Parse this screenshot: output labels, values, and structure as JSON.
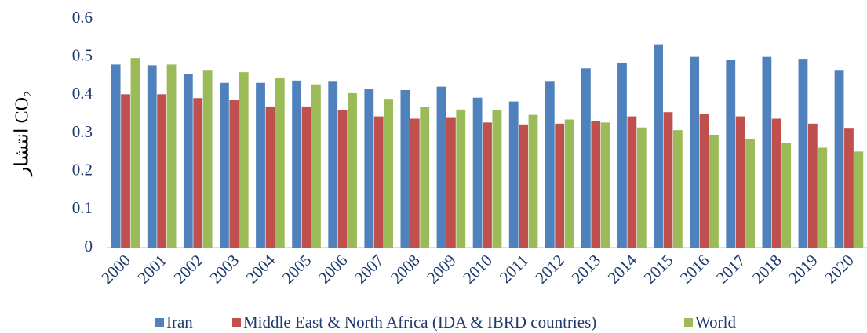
{
  "chart_data": {
    "type": "bar",
    "y_label": "انتشار CO₂",
    "categories": [
      "2000",
      "2001",
      "2002",
      "2003",
      "2004",
      "2005",
      "2006",
      "2007",
      "2008",
      "2009",
      "2010",
      "2011",
      "2012",
      "2013",
      "2014",
      "2015",
      "2016",
      "2017",
      "2018",
      "2019",
      "2020"
    ],
    "series": [
      {
        "name": "Iran",
        "color": "#4f81bd",
        "values": [
          0.48,
          0.478,
          0.455,
          0.432,
          0.432,
          0.438,
          0.435,
          0.415,
          0.413,
          0.422,
          0.393,
          0.383,
          0.435,
          0.47,
          0.485,
          0.533,
          0.5,
          0.493,
          0.5,
          0.495,
          0.466
        ]
      },
      {
        "name": "Middle East & North Africa (IDA & IBRD countries)",
        "color": "#c0504d",
        "values": [
          0.402,
          0.402,
          0.392,
          0.388,
          0.37,
          0.37,
          0.36,
          0.344,
          0.338,
          0.342,
          0.328,
          0.323,
          0.325,
          0.332,
          0.344,
          0.355,
          0.35,
          0.344,
          0.338,
          0.325,
          0.312
        ]
      },
      {
        "name": "World",
        "color": "#9bbb59",
        "values": [
          0.497,
          0.48,
          0.466,
          0.46,
          0.446,
          0.428,
          0.405,
          0.39,
          0.368,
          0.362,
          0.36,
          0.348,
          0.336,
          0.328,
          0.315,
          0.308,
          0.296,
          0.285,
          0.275,
          0.262,
          0.252
        ]
      }
    ],
    "ylim": [
      0,
      0.6
    ],
    "yticks": [
      0,
      0.1,
      0.2,
      0.3,
      0.4,
      0.5,
      0.6
    ],
    "grid": false,
    "legend": "bottom"
  }
}
